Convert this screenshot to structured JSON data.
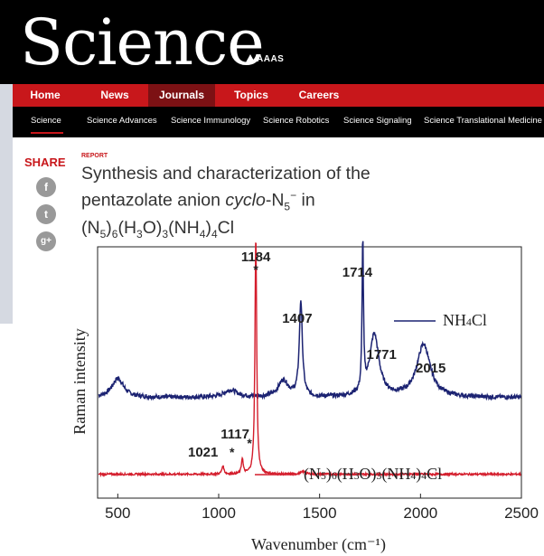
{
  "header": {
    "logo": "Science",
    "publisher": "AAAS"
  },
  "nav": {
    "items": [
      "Home",
      "News",
      "Journals",
      "Topics",
      "Careers"
    ],
    "active_index": 2
  },
  "subnav": {
    "items": [
      "Science",
      "Science Advances",
      "Science Immunology",
      "Science Robotics",
      "Science Signaling",
      "Science Translational Medicine"
    ],
    "active_index": 0
  },
  "share": {
    "label": "SHARE",
    "buttons": [
      {
        "icon": "facebook-icon",
        "glyph": "f"
      },
      {
        "icon": "twitter-icon",
        "glyph": "t"
      },
      {
        "icon": "googleplus-icon",
        "glyph": "g+"
      }
    ]
  },
  "article": {
    "tag": "REPORT",
    "title_line1": "Synthesis and characterization of the",
    "title_line2_pre": "pentazolate anion ",
    "title_line2_italic": "cyclo",
    "title_line2_main": "-N",
    "title_line2_sub": "5",
    "title_line2_sup": "−",
    "title_line2_post": " in",
    "title_line3": [
      {
        "t": "(N"
      },
      {
        "sub": "5"
      },
      {
        "t": ")"
      },
      {
        "sub": "6"
      },
      {
        "t": "(H"
      },
      {
        "sub": "3"
      },
      {
        "t": "O)"
      },
      {
        "sub": "3"
      },
      {
        "t": "(NH"
      },
      {
        "sub": "4"
      },
      {
        "t": ")"
      },
      {
        "sub": "4"
      },
      {
        "t": "Cl"
      }
    ]
  },
  "colors": {
    "brand_red": "#c8171b",
    "nav_active": "#7c1114",
    "series_blue": "#1c2372",
    "series_red": "#d41d2c"
  },
  "chart_data": {
    "type": "line",
    "title": "",
    "xlabel": "Wavenumber (cm⁻¹)",
    "ylabel": "Raman intensity",
    "xlim": [
      400,
      2500
    ],
    "y_ticks_shown": false,
    "x_ticks": [
      500,
      1000,
      1500,
      2000,
      2500
    ],
    "series": [
      {
        "name": "NH4Cl",
        "color": "#1c2372",
        "baseline": 0.42,
        "peaks": [
          {
            "x": 500,
            "height": 0.08,
            "width": 35
          },
          {
            "x": 1060,
            "height": 0.03,
            "width": 40
          },
          {
            "x": 1320,
            "height": 0.07,
            "width": 30
          },
          {
            "x": 1407,
            "height": 0.4,
            "width": 9
          },
          {
            "x": 1714,
            "height": 0.63,
            "width": 4
          },
          {
            "x": 1771,
            "height": 0.26,
            "width": 28
          },
          {
            "x": 2015,
            "height": 0.22,
            "width": 40
          }
        ]
      },
      {
        "name": "(N5)6(H3O)3(NH4)4Cl",
        "color": "#d41d2c",
        "baseline": 0.1,
        "peaks": [
          {
            "x": 1021,
            "height": 0.035,
            "width": 6
          },
          {
            "x": 1117,
            "height": 0.065,
            "width": 5
          },
          {
            "x": 1184,
            "height": 1.0,
            "width": 5
          },
          {
            "x": 1420,
            "height": 0.01,
            "width": 15
          }
        ]
      }
    ],
    "peak_labels": [
      {
        "x": 1184,
        "text": "1184",
        "star": true
      },
      {
        "x": 1714,
        "text": "1714",
        "star": false
      },
      {
        "x": 1407,
        "text": "1407",
        "star": false
      },
      {
        "x": 1771,
        "text": "1771",
        "star": false
      },
      {
        "x": 2015,
        "text": "2015",
        "star": false
      },
      {
        "x": 1117,
        "text": "1117",
        "star": true
      },
      {
        "x": 1021,
        "text": "1021",
        "star": true
      }
    ],
    "legend": [
      {
        "series": 0,
        "label": "NH4Cl",
        "label_parts": [
          {
            "t": "NH"
          },
          {
            "sub": "4"
          },
          {
            "t": "Cl"
          }
        ]
      },
      {
        "series": 1,
        "label": "(N5)6(H3O)3(NH4)4Cl",
        "label_parts": [
          {
            "t": "(N"
          },
          {
            "sub": "5"
          },
          {
            "t": ")"
          },
          {
            "sub": "6"
          },
          {
            "t": "(H"
          },
          {
            "sub": "3"
          },
          {
            "t": "O)"
          },
          {
            "sub": "3"
          },
          {
            "t": "(NH"
          },
          {
            "sub": "4"
          },
          {
            "t": ")"
          },
          {
            "sub": "4"
          },
          {
            "t": "Cl"
          }
        ]
      }
    ]
  }
}
